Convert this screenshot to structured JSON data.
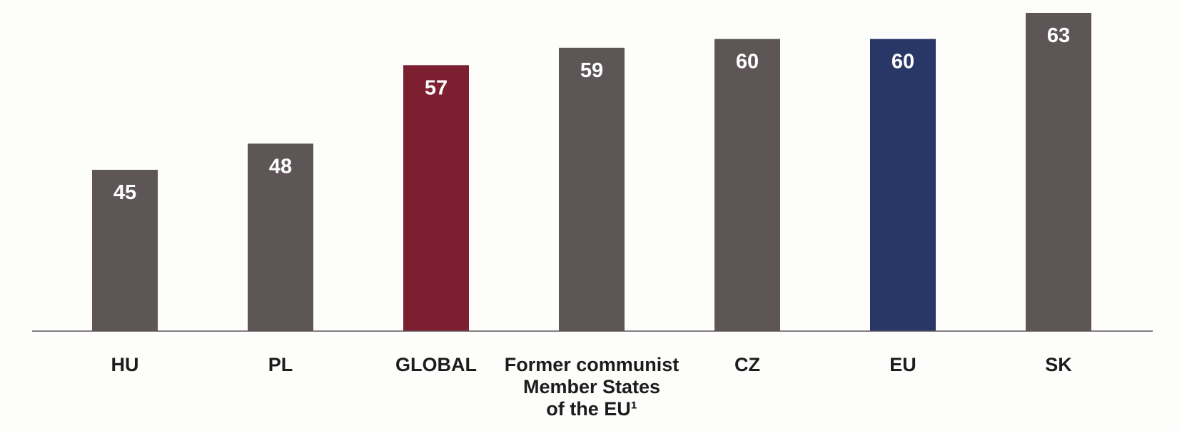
{
  "chart_data": {
    "type": "bar",
    "categories": [
      [
        "HU"
      ],
      [
        "PL"
      ],
      [
        "GLOBAL"
      ],
      [
        "Former communist",
        "Member States",
        "of the EU¹"
      ],
      [
        "CZ"
      ],
      [
        "EU"
      ],
      [
        "SK"
      ]
    ],
    "values": [
      45,
      48,
      57,
      59,
      60,
      60,
      63
    ],
    "value_labels": [
      "45",
      "48",
      "57",
      "59",
      "60",
      "60",
      "63"
    ],
    "colors": [
      "#5e5557",
      "#5e5557",
      "#7b1f31",
      "#5e5557",
      "#5e5557",
      "#283766",
      "#5e5557"
    ],
    "axis_color": "#5e5557",
    "title": "",
    "xlabel": "",
    "ylabel": "",
    "ylim": [
      26.5,
      63
    ],
    "grid": false,
    "legend": "none"
  }
}
